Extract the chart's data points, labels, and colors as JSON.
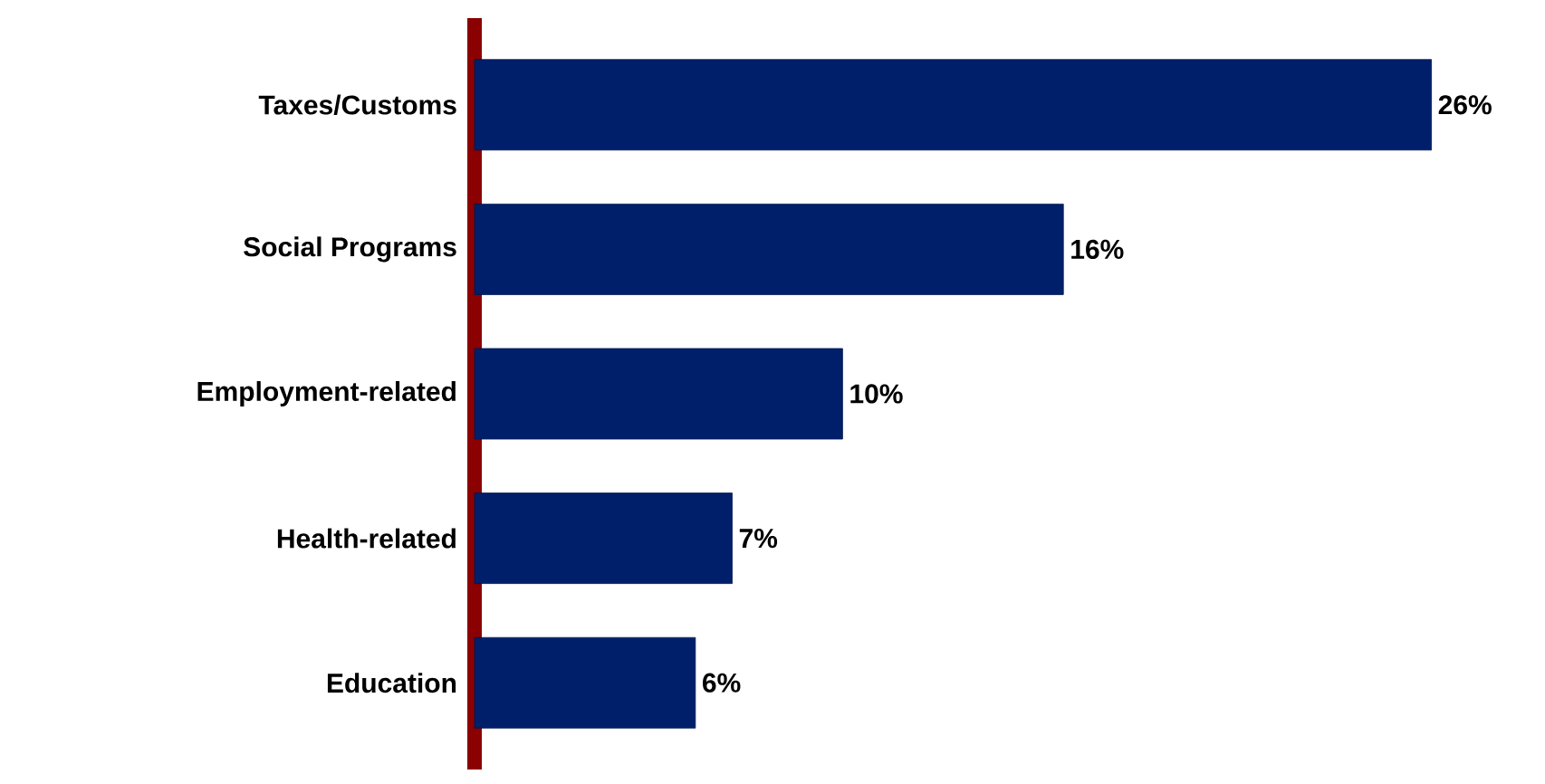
{
  "chart_data": {
    "type": "bar",
    "orientation": "horizontal",
    "categories": [
      "Taxes/Customs",
      "Social Programs",
      "Employment-related",
      "Health-related",
      "Education"
    ],
    "values": [
      26,
      16,
      10,
      7,
      6
    ],
    "value_labels": [
      "26%",
      "16%",
      "10%",
      "7%",
      "6%"
    ],
    "color": "#001f6b"
  }
}
